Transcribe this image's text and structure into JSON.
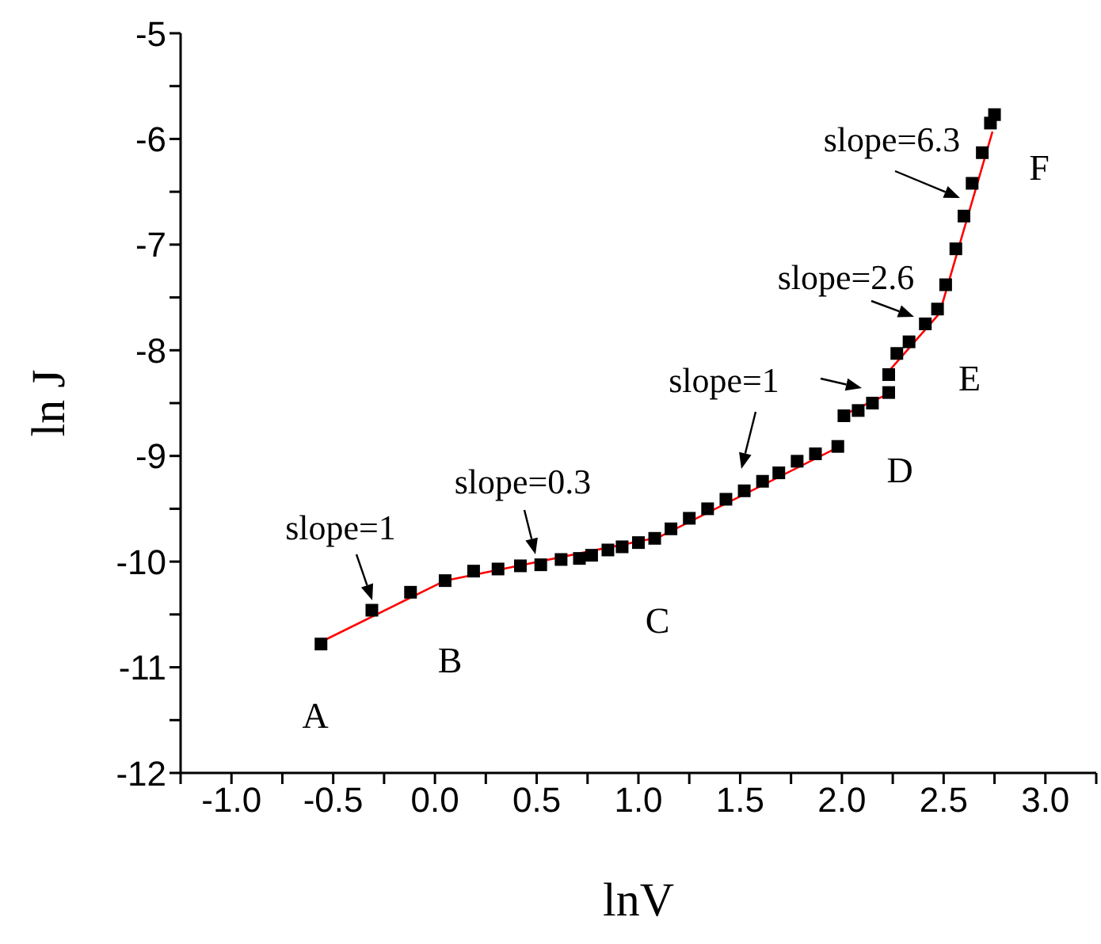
{
  "chart_data": {
    "type": "scatter",
    "xlabel": "lnV",
    "ylabel": "ln J",
    "xlim": [
      -1.25,
      3.25
    ],
    "xticks": [
      {
        "value": -1.25,
        "label": null
      },
      {
        "value": -1,
        "label": "-1.0"
      },
      {
        "value": -0.75,
        "label": null
      },
      -0.5,
      {
        "value": -0.25,
        "label": null
      },
      {
        "value": 0,
        "label": "0.0"
      },
      {
        "value": 0.25,
        "label": null
      },
      0.5,
      {
        "value": 0.75,
        "label": null
      },
      {
        "value": 1,
        "label": "1.0"
      },
      {
        "value": 1.25,
        "label": null
      },
      1.5,
      {
        "value": 1.75,
        "label": null
      },
      {
        "value": 2,
        "label": "2.0"
      },
      {
        "value": 2.25,
        "label": null
      },
      2.5,
      {
        "value": 2.75,
        "label": null
      },
      {
        "value": 3,
        "label": "3.0"
      },
      {
        "value": 3.25,
        "label": null
      }
    ],
    "ylim": [
      -12,
      -5
    ],
    "yticks": [
      -12,
      {
        "value": -11.5,
        "label": null
      },
      -11,
      {
        "value": -10.5,
        "label": null
      },
      -10,
      {
        "value": -9.5,
        "label": null
      },
      -9,
      {
        "value": -8.5,
        "label": null
      },
      -8,
      {
        "value": -7.5,
        "label": null
      },
      -7,
      {
        "value": -6.5,
        "label": null
      },
      -6,
      {
        "value": -5.5,
        "label": null
      },
      -5
    ],
    "grid": false,
    "legend": false,
    "marker": "square",
    "series": [
      {
        "color": "#000000",
        "x": [
          -0.56,
          -0.31,
          -0.12,
          0.05,
          0.19,
          0.31,
          0.42,
          0.52,
          0.62,
          0.71,
          0.77,
          0.85,
          0.92,
          1.0,
          1.08,
          1.16,
          1.25,
          1.34,
          1.43,
          1.52,
          1.61,
          1.69,
          1.78,
          1.87,
          1.98,
          2.01,
          2.08,
          2.15,
          2.23,
          2.23,
          2.27,
          2.33,
          2.41,
          2.47,
          2.51,
          2.56,
          2.6,
          2.64,
          2.69,
          2.73,
          2.75
        ],
        "values": [
          -10.78,
          -10.46,
          -10.29,
          -10.18,
          -10.09,
          -10.07,
          -10.04,
          -10.03,
          -9.98,
          -9.97,
          -9.94,
          -9.89,
          -9.86,
          -9.82,
          -9.78,
          -9.69,
          -9.59,
          -9.5,
          -9.41,
          -9.33,
          -9.24,
          -9.16,
          -9.05,
          -8.98,
          -8.91,
          -8.62,
          -8.57,
          -8.5,
          -8.4,
          -8.23,
          -8.03,
          -7.92,
          -7.75,
          -7.61,
          -7.38,
          -7.04,
          -6.73,
          -6.42,
          -6.13,
          -5.85,
          -5.77
        ]
      },
      {
        "type": "line",
        "marker": "none",
        "color": "#ff0000",
        "line_style": "solid",
        "x": [
          -0.55,
          0.05,
          1.1,
          2.0
        ],
        "values": [
          -10.75,
          -10.18,
          -9.77,
          -8.9
        ]
      },
      {
        "type": "line",
        "marker": "none",
        "color": "#ff0000",
        "line_style": "solid",
        "x": [
          2.02,
          2.22
        ],
        "values": [
          -8.6,
          -8.42
        ]
      },
      {
        "type": "line",
        "marker": "none",
        "color": "#ff0000",
        "line_style": "solid",
        "x": [
          2.23,
          2.48,
          2.74
        ],
        "values": [
          -8.2,
          -7.65,
          -5.93
        ]
      }
    ],
    "annotations": [
      "slope=1",
      "slope=0.3",
      "slope=1",
      "slope=2.6",
      "slope=6.3",
      "A",
      "B",
      "C",
      "D",
      "E",
      "F"
    ]
  }
}
